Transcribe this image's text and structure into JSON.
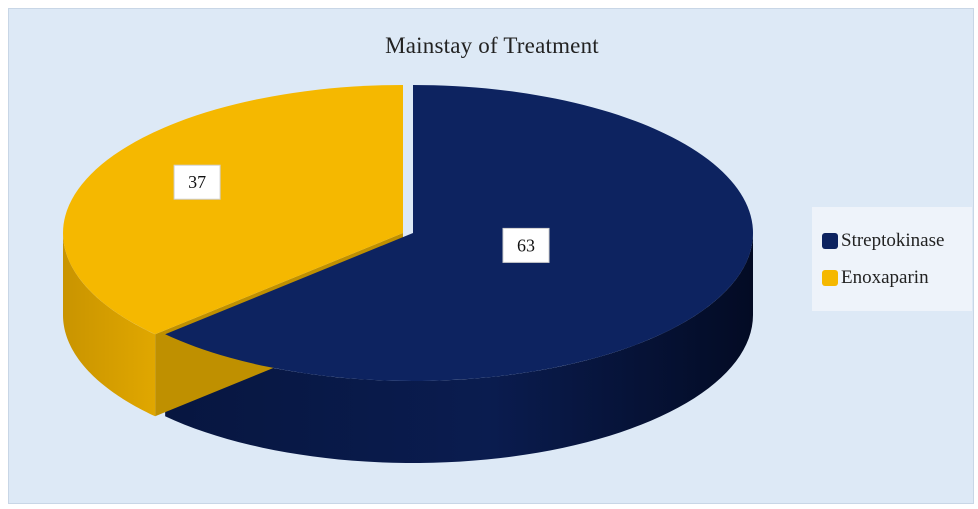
{
  "chart_data": {
    "type": "pie",
    "title": "Mainstay of Treatment",
    "slices": [
      {
        "name": "Streptokinase",
        "value": 63,
        "color": "#0d2360"
      },
      {
        "name": "Enoxaparin",
        "value": 37,
        "color": "#f5b800"
      }
    ],
    "legend_position": "right",
    "style": "3d"
  }
}
